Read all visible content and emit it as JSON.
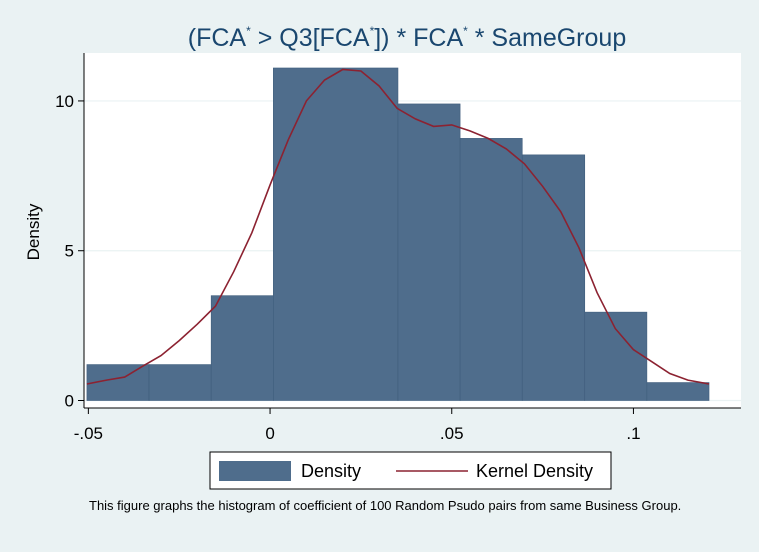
{
  "chart_data": {
    "type": "bar",
    "title_parts": [
      "(FCA",
      "*",
      " > Q3[FCA",
      "*",
      "]) * FCA",
      "*",
      " * SameGroup"
    ],
    "ylabel": "Density",
    "xlabel": "",
    "xlim": [
      -0.0512,
      0.1296
    ],
    "ylim": [
      -0.25,
      11.6
    ],
    "x_ticks": [
      {
        "value": -0.05,
        "label": "-.05"
      },
      {
        "value": 0,
        "label": "0"
      },
      {
        "value": 0.05,
        "label": ".05"
      },
      {
        "value": 0.1,
        "label": ".1"
      }
    ],
    "y_ticks": [
      {
        "value": 0,
        "label": "0"
      },
      {
        "value": 5,
        "label": "5"
      },
      {
        "value": 10,
        "label": "10"
      }
    ],
    "grid": true,
    "bar_color": "#4f6d8c",
    "kde_color": "#8c2231",
    "bins": [
      {
        "x0": -0.0504,
        "x1": -0.0333,
        "density": 1.2
      },
      {
        "x0": -0.0333,
        "x1": -0.0162,
        "density": 1.2
      },
      {
        "x0": -0.0162,
        "x1": 0.0009,
        "density": 3.5
      },
      {
        "x0": 0.0009,
        "x1": 0.0352,
        "density": 11.1
      },
      {
        "x0": 0.0352,
        "x1": 0.0523,
        "density": 9.9
      },
      {
        "x0": 0.0523,
        "x1": 0.0694,
        "density": 8.75
      },
      {
        "x0": 0.0694,
        "x1": 0.0866,
        "density": 8.2
      },
      {
        "x0": 0.0866,
        "x1": 0.1037,
        "density": 2.95
      },
      {
        "x0": 0.1037,
        "x1": 0.1208,
        "density": 0.6
      }
    ],
    "kernel_density": {
      "x": [
        -0.0504,
        -0.045,
        -0.04,
        -0.035,
        -0.03,
        -0.025,
        -0.02,
        -0.015,
        -0.01,
        -0.005,
        0,
        0.005,
        0.01,
        0.015,
        0.02,
        0.025,
        0.03,
        0.035,
        0.04,
        0.045,
        0.05,
        0.055,
        0.06,
        0.065,
        0.07,
        0.075,
        0.08,
        0.085,
        0.09,
        0.095,
        0.1,
        0.105,
        0.11,
        0.115,
        0.1208
      ],
      "y": [
        0.55,
        0.68,
        0.78,
        1.15,
        1.5,
        2.0,
        2.55,
        3.15,
        4.3,
        5.6,
        7.2,
        8.7,
        10.0,
        10.7,
        11.05,
        11.0,
        10.5,
        9.75,
        9.4,
        9.15,
        9.2,
        9.0,
        8.75,
        8.4,
        7.9,
        7.15,
        6.3,
        5.1,
        3.6,
        2.4,
        1.7,
        1.3,
        0.9,
        0.68,
        0.55
      ]
    }
  },
  "legend": {
    "items": [
      {
        "label": "Density",
        "type": "swatch"
      },
      {
        "label": "Kernel Density",
        "type": "line"
      }
    ]
  },
  "note": "This figure graphs the histogram of coefficient of 100 Random Psudo pairs from same Business Group."
}
